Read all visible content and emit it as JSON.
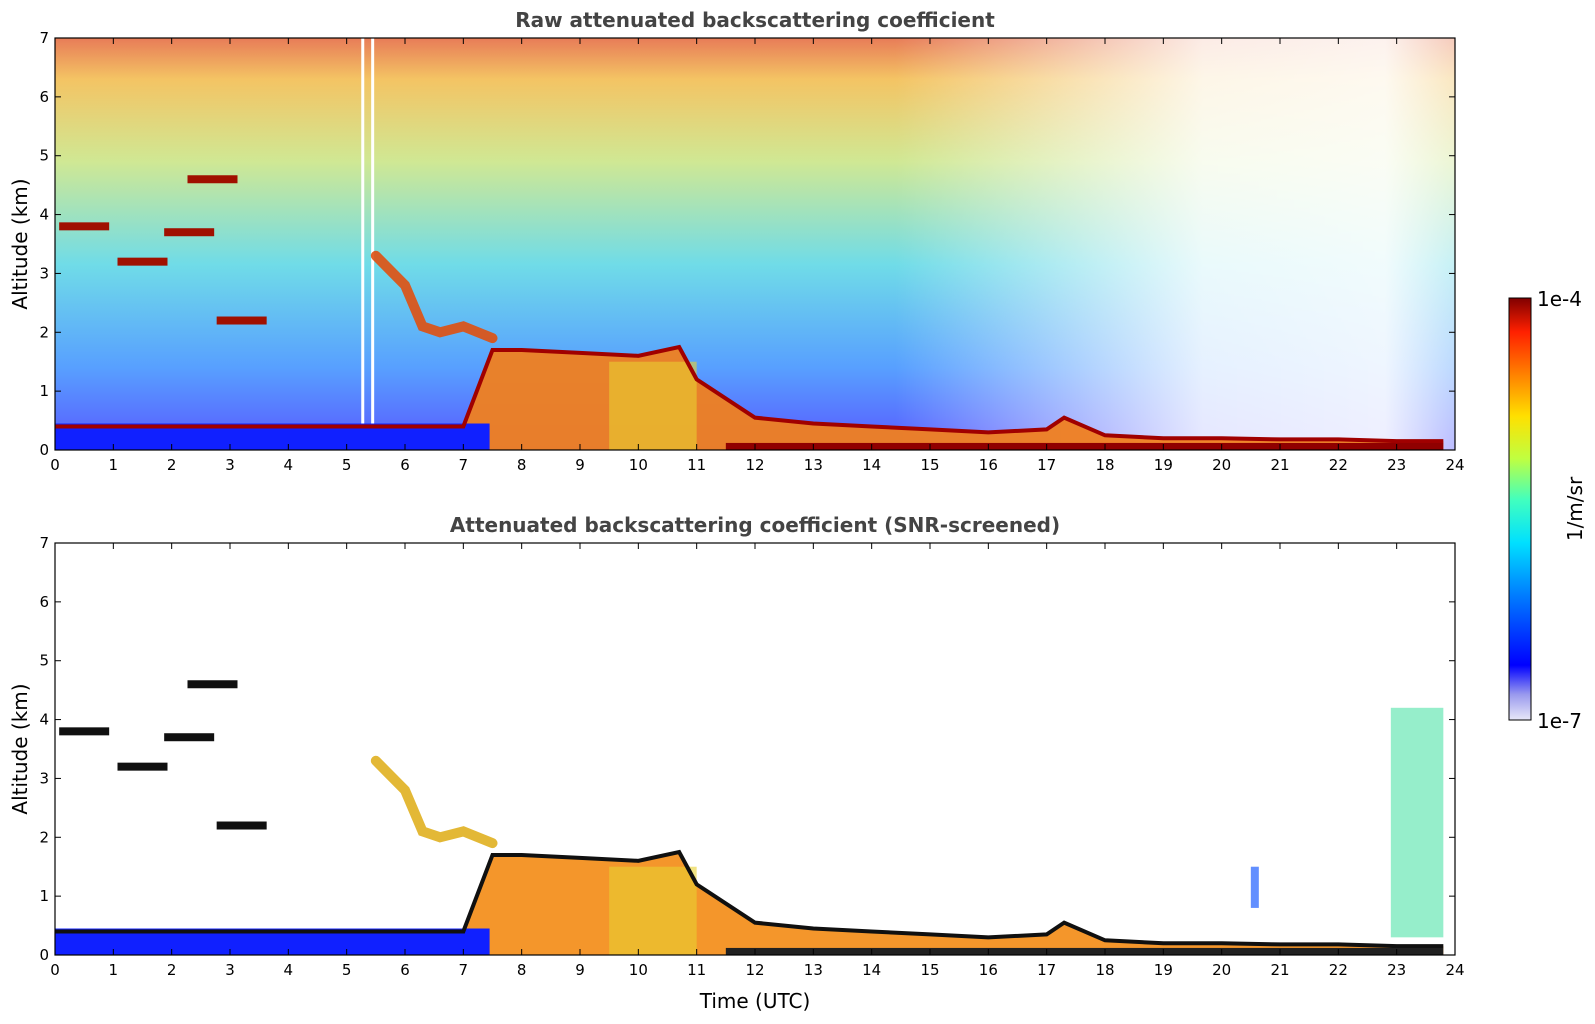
{
  "chart_data": [
    {
      "type": "heatmap",
      "title": "Raw attenuated backscattering coefficient",
      "xlabel": "",
      "ylabel": "Altitude (km)",
      "xlim": [
        0,
        24
      ],
      "ylim": [
        0,
        7
      ],
      "x_ticks": [
        "0",
        "1",
        "2",
        "3",
        "4",
        "5",
        "6",
        "7",
        "8",
        "9",
        "10",
        "11",
        "12",
        "13",
        "14",
        "15",
        "16",
        "17",
        "18",
        "19",
        "20",
        "21",
        "22",
        "23",
        "24"
      ],
      "y_ticks": [
        "0",
        "1",
        "2",
        "3",
        "4",
        "5",
        "6",
        "7"
      ],
      "features": [
        {
          "name": "aerosol/cloud top height (km)",
          "x": [
            0,
            2,
            4,
            5,
            6,
            7,
            7.5,
            8,
            9,
            10,
            10.7,
            11,
            12,
            13,
            14,
            15,
            16,
            17,
            17.3,
            18,
            19,
            20,
            21,
            22,
            23,
            23.8
          ],
          "y": [
            0.4,
            0.4,
            0.4,
            0.4,
            0.4,
            0.4,
            1.7,
            1.7,
            1.65,
            1.6,
            1.75,
            1.2,
            0.55,
            0.45,
            0.4,
            0.35,
            0.3,
            0.35,
            0.55,
            0.25,
            0.2,
            0.2,
            0.18,
            0.18,
            0.15,
            0.15
          ]
        },
        {
          "name": "elevated layer (km)",
          "x": [
            5.5,
            6,
            6.3,
            6.6,
            7,
            7.5
          ],
          "y": [
            3.3,
            2.8,
            2.1,
            2.0,
            2.1,
            1.9
          ]
        },
        {
          "name": "cloud patches (km)",
          "x": [
            0.5,
            1.5,
            2.3,
            2.7,
            3.2
          ],
          "y": [
            3.8,
            3.2,
            3.7,
            4.6,
            2.2
          ]
        }
      ]
    },
    {
      "type": "heatmap",
      "title": "Attenuated backscattering coefficient (SNR-screened)",
      "xlabel": "Time (UTC)",
      "ylabel": "Altitude (km)",
      "xlim": [
        0,
        24
      ],
      "ylim": [
        0,
        7
      ],
      "x_ticks": [
        "0",
        "1",
        "2",
        "3",
        "4",
        "5",
        "6",
        "7",
        "8",
        "9",
        "10",
        "11",
        "12",
        "13",
        "14",
        "15",
        "16",
        "17",
        "18",
        "19",
        "20",
        "21",
        "22",
        "23",
        "24"
      ],
      "y_ticks": [
        "0",
        "1",
        "2",
        "3",
        "4",
        "5",
        "6",
        "7"
      ]
    }
  ],
  "colorbar": {
    "label": "1/m/sr",
    "top_label": "1e-4",
    "bottom_label": "1e-7",
    "scale": "log",
    "range": [
      1e-07,
      0.0001
    ]
  }
}
